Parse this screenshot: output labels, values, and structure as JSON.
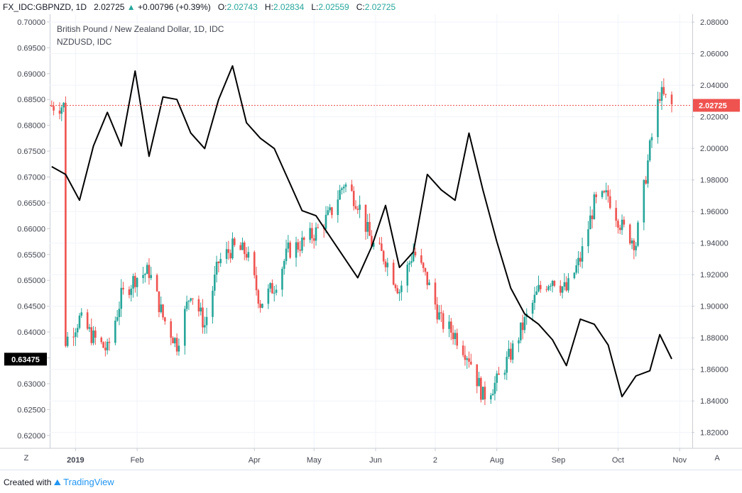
{
  "header": {
    "symbol": "FX_IDC:GBPNZD, 1D",
    "last": "2.02725",
    "change_arrow": "▲",
    "change": "+0.00796 (+0.39%)",
    "o_label": "O:",
    "o_value": "2.02743",
    "h_label": "H:",
    "h_value": "2.02834",
    "l_label": "L:",
    "l_value": "2.02559",
    "c_label": "C:",
    "c_value": "2.02725"
  },
  "legend": {
    "main": "British Pound / New Zealand Dollar, 1D, IDC",
    "compare": "NZDUSD, IDC"
  },
  "footer": {
    "created_with": "Created with",
    "brand": "TradingView",
    "left_button": "Z",
    "right_button": "A"
  },
  "colors": {
    "up": "#26a69a",
    "down": "#ef5350",
    "compare_line": "#000000",
    "price_line": "#ef5350"
  },
  "chart_data": {
    "type": "candlestick",
    "title": "British Pound / New Zealand Dollar, 1D, IDC",
    "right_axis": {
      "ticks": [
        "2.08000",
        "2.06000",
        "2.04000",
        "2.02000",
        "2.00000",
        "1.98000",
        "1.96000",
        "1.94000",
        "1.92000",
        "1.90000",
        "1.88000",
        "1.86000",
        "1.84000",
        "1.82000"
      ],
      "ylim": [
        1.81,
        2.085
      ]
    },
    "left_axis": {
      "ticks": [
        "0.70000",
        "0.69500",
        "0.69000",
        "0.68500",
        "0.68000",
        "0.67500",
        "0.67000",
        "0.66500",
        "0.66000",
        "0.65500",
        "0.65000",
        "0.64500",
        "0.64000",
        "0.63500",
        "0.63000",
        "0.62500",
        "0.62000"
      ],
      "ylim": [
        0.6175,
        0.7015
      ]
    },
    "x_ticks": [
      "2019",
      "Feb",
      "Apr",
      "May",
      "Jun",
      "2",
      "Aug",
      "Sep",
      "Oct",
      "Nov"
    ],
    "x_tick_dates": [
      "2019-01-01",
      "2019-02-01",
      "2019-04-01",
      "2019-05-01",
      "2019-06-01",
      "2019-07-01",
      "2019-08-01",
      "2019-09-01",
      "2019-10-01",
      "2019-11-01"
    ],
    "x_range": [
      "2018-12-19",
      "2019-11-07"
    ],
    "last_price_label": "2.02725",
    "last_price": 2.02725,
    "compare_last_label": "0.63475",
    "compare_last": 0.63475,
    "series": [
      {
        "name": "British Pound / New Zealand Dollar",
        "kind": "candlestick",
        "points": [
          [
            "2018-12-27",
            1.878
          ],
          [
            "2019-01-03",
            1.892
          ],
          [
            "2019-01-10",
            1.88
          ],
          [
            "2019-01-17",
            1.872
          ],
          [
            "2019-01-24",
            1.906
          ],
          [
            "2019-01-31",
            1.918
          ],
          [
            "2019-02-07",
            1.922
          ],
          [
            "2019-02-14",
            1.893
          ],
          [
            "2019-02-21",
            1.876
          ],
          [
            "2019-02-28",
            1.91
          ],
          [
            "2019-03-07",
            1.888
          ],
          [
            "2019-03-14",
            1.928
          ],
          [
            "2019-03-21",
            1.937
          ],
          [
            "2019-03-28",
            1.934
          ],
          [
            "2019-04-04",
            1.902
          ],
          [
            "2019-04-11",
            1.913
          ],
          [
            "2019-04-18",
            1.935
          ],
          [
            "2019-04-25",
            1.94
          ],
          [
            "2019-05-02",
            1.947
          ],
          [
            "2019-05-09",
            1.958
          ],
          [
            "2019-05-16",
            1.978
          ],
          [
            "2019-05-23",
            1.966
          ],
          [
            "2019-05-30",
            1.94
          ],
          [
            "2019-06-06",
            1.93
          ],
          [
            "2019-06-13",
            1.91
          ],
          [
            "2019-06-20",
            1.935
          ],
          [
            "2019-06-27",
            1.916
          ],
          [
            "2019-07-04",
            1.89
          ],
          [
            "2019-07-11",
            1.882
          ],
          [
            "2019-07-18",
            1.868
          ],
          [
            "2019-07-25",
            1.843
          ],
          [
            "2019-08-01",
            1.852
          ],
          [
            "2019-08-08",
            1.87
          ],
          [
            "2019-08-15",
            1.89
          ],
          [
            "2019-08-22",
            1.91
          ],
          [
            "2019-08-29",
            1.918
          ],
          [
            "2019-09-05",
            1.91
          ],
          [
            "2019-09-12",
            1.93
          ],
          [
            "2019-09-19",
            1.965
          ],
          [
            "2019-09-26",
            1.97
          ],
          [
            "2019-10-03",
            1.95
          ],
          [
            "2019-10-10",
            1.94
          ],
          [
            "2019-10-17",
            2.0
          ],
          [
            "2019-10-22",
            2.035
          ],
          [
            "2019-10-28",
            2.027
          ]
        ]
      },
      {
        "name": "NZDUSD",
        "kind": "line",
        "points": [
          [
            "2018-12-20",
            0.672
          ],
          [
            "2018-12-27",
            0.6705
          ],
          [
            "2019-01-03",
            0.6655
          ],
          [
            "2019-01-10",
            0.676
          ],
          [
            "2019-01-17",
            0.6825
          ],
          [
            "2019-01-24",
            0.676
          ],
          [
            "2019-01-31",
            0.6905
          ],
          [
            "2019-02-07",
            0.674
          ],
          [
            "2019-02-14",
            0.6855
          ],
          [
            "2019-02-21",
            0.685
          ],
          [
            "2019-02-28",
            0.6785
          ],
          [
            "2019-03-07",
            0.6755
          ],
          [
            "2019-03-14",
            0.685
          ],
          [
            "2019-03-21",
            0.6915
          ],
          [
            "2019-03-28",
            0.6805
          ],
          [
            "2019-04-04",
            0.6775
          ],
          [
            "2019-04-11",
            0.6755
          ],
          [
            "2019-04-18",
            0.6695
          ],
          [
            "2019-04-25",
            0.6635
          ],
          [
            "2019-05-02",
            0.6625
          ],
          [
            "2019-05-09",
            0.6585
          ],
          [
            "2019-05-16",
            0.6545
          ],
          [
            "2019-05-23",
            0.6505
          ],
          [
            "2019-05-30",
            0.6565
          ],
          [
            "2019-06-06",
            0.6645
          ],
          [
            "2019-06-13",
            0.6525
          ],
          [
            "2019-06-20",
            0.6555
          ],
          [
            "2019-06-27",
            0.6705
          ],
          [
            "2019-07-04",
            0.6675
          ],
          [
            "2019-07-11",
            0.6655
          ],
          [
            "2019-07-18",
            0.6785
          ],
          [
            "2019-07-25",
            0.6675
          ],
          [
            "2019-08-01",
            0.6575
          ],
          [
            "2019-08-08",
            0.6485
          ],
          [
            "2019-08-15",
            0.6435
          ],
          [
            "2019-08-22",
            0.6415
          ],
          [
            "2019-08-29",
            0.6385
          ],
          [
            "2019-09-05",
            0.6335
          ],
          [
            "2019-09-12",
            0.6425
          ],
          [
            "2019-09-19",
            0.6415
          ],
          [
            "2019-09-26",
            0.6375
          ],
          [
            "2019-10-03",
            0.6275
          ],
          [
            "2019-10-10",
            0.6315
          ],
          [
            "2019-10-17",
            0.6325
          ],
          [
            "2019-10-22",
            0.6395
          ],
          [
            "2019-10-28",
            0.6348
          ]
        ]
      }
    ]
  }
}
